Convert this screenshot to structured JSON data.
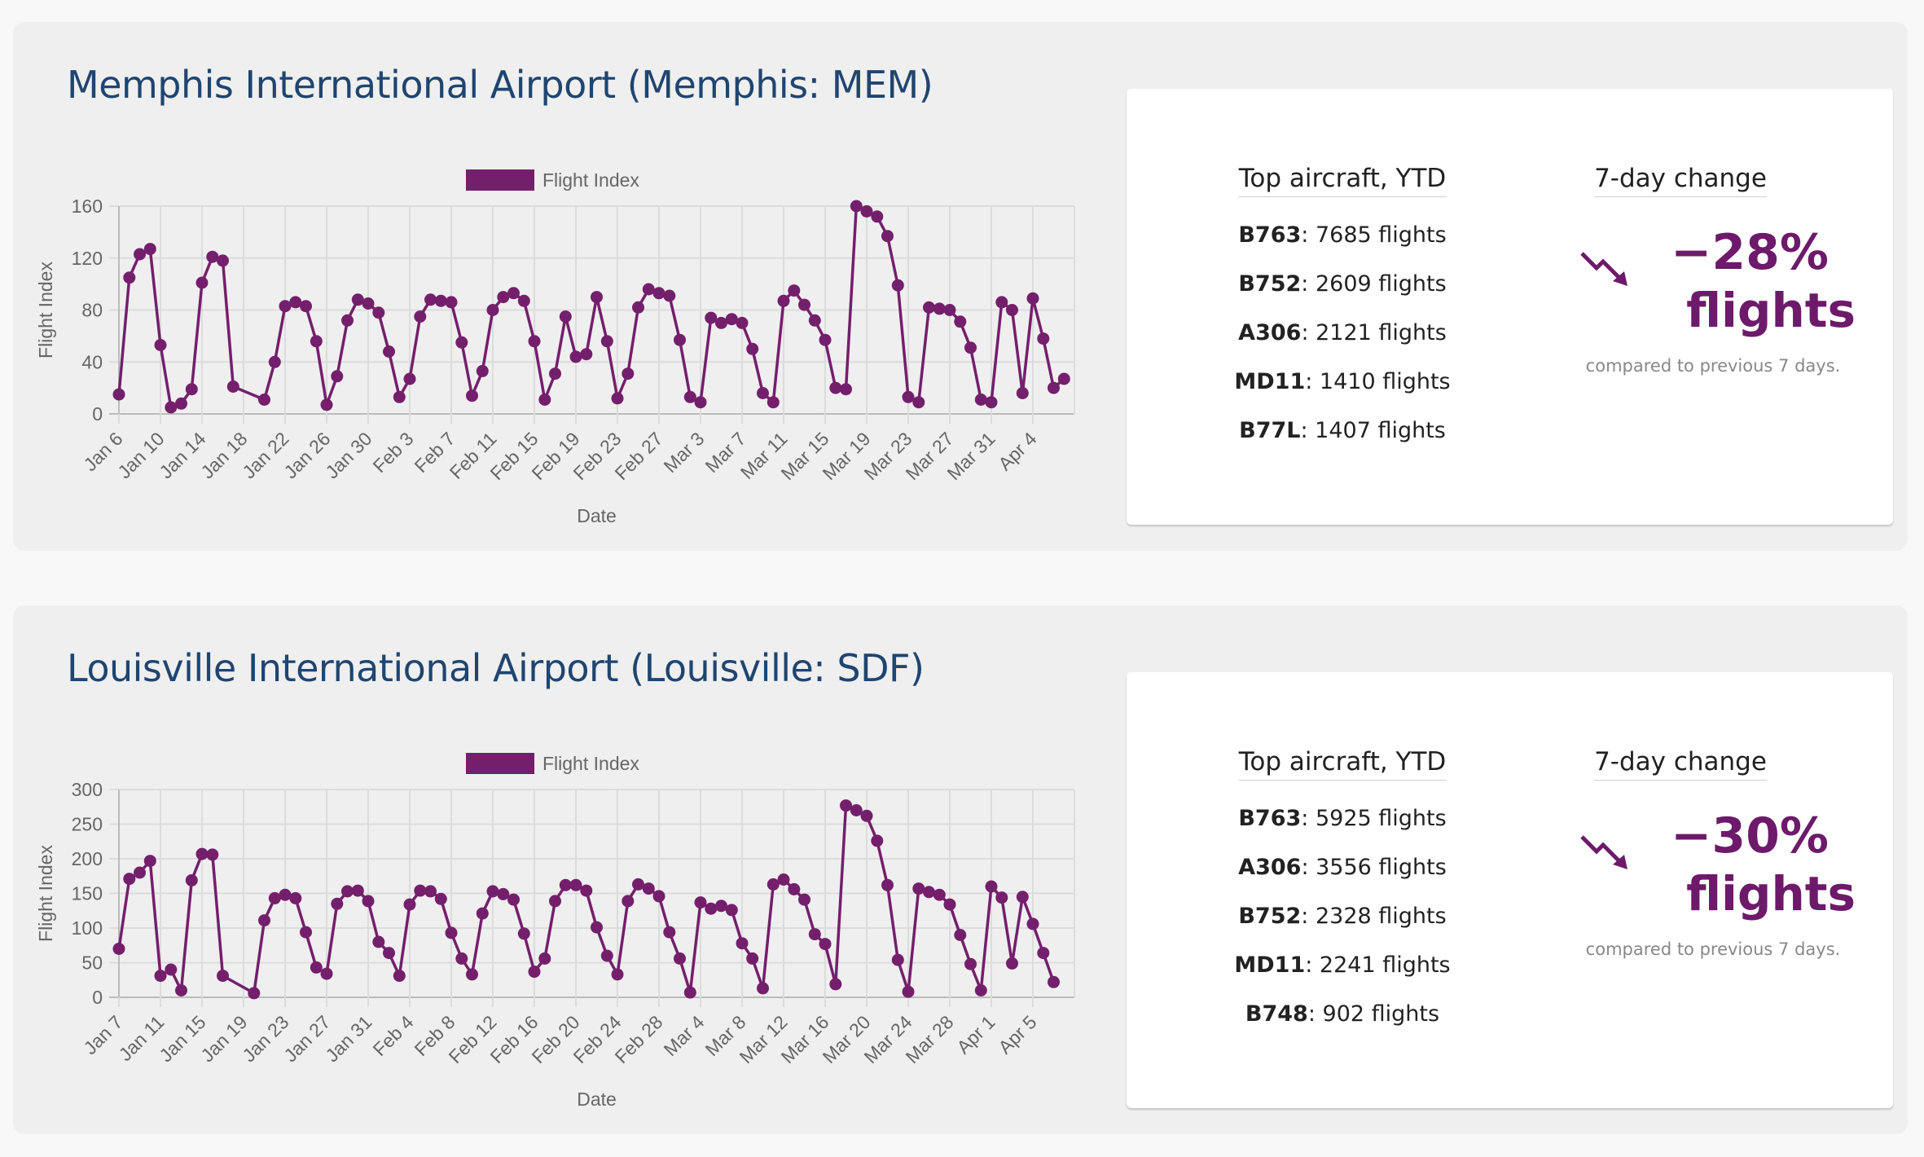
{
  "airports": [
    {
      "title": "Memphis International Airport (Memphis: MEM)",
      "chart_data": {
        "type": "line",
        "legend": "Flight Index",
        "xlabel": "Date",
        "ylabel": "Flight Index",
        "ylim": [
          0,
          160
        ],
        "yticks": [
          0,
          40,
          80,
          120,
          160
        ],
        "tick_labels": [
          "Jan 6",
          "Jan 10",
          "Jan 14",
          "Jan 18",
          "Jan 22",
          "Jan 26",
          "Jan 30",
          "Feb 3",
          "Feb 7",
          "Feb 11",
          "Feb 15",
          "Feb 19",
          "Feb 23",
          "Feb 27",
          "Mar 3",
          "Mar 7",
          "Mar 11",
          "Mar 15",
          "Mar 19",
          "Mar 23",
          "Mar 27",
          "Mar 31",
          "Apr 4"
        ],
        "x_start": 0,
        "x_end": 92,
        "day_offset": 0,
        "tick_every": 4,
        "points": [
          [
            0,
            15
          ],
          [
            1,
            105
          ],
          [
            2,
            123
          ],
          [
            3,
            127
          ],
          [
            4,
            53
          ],
          [
            5,
            5
          ],
          [
            6,
            8
          ],
          [
            7,
            19
          ],
          [
            8,
            101
          ],
          [
            9,
            121
          ],
          [
            10,
            118
          ],
          [
            11,
            21
          ],
          [
            14,
            11
          ],
          [
            15,
            40
          ],
          [
            16,
            83
          ],
          [
            17,
            86
          ],
          [
            18,
            83
          ],
          [
            19,
            56
          ],
          [
            20,
            7
          ],
          [
            21,
            29
          ],
          [
            22,
            72
          ],
          [
            23,
            88
          ],
          [
            24,
            85
          ],
          [
            25,
            78
          ],
          [
            26,
            48
          ],
          [
            27,
            13
          ],
          [
            28,
            27
          ],
          [
            29,
            75
          ],
          [
            30,
            88
          ],
          [
            31,
            87
          ],
          [
            32,
            86
          ],
          [
            33,
            55
          ],
          [
            34,
            14
          ],
          [
            35,
            33
          ],
          [
            36,
            80
          ],
          [
            37,
            90
          ],
          [
            38,
            93
          ],
          [
            39,
            87
          ],
          [
            40,
            56
          ],
          [
            41,
            11
          ],
          [
            42,
            31
          ],
          [
            43,
            75
          ],
          [
            44,
            44
          ],
          [
            45,
            46
          ],
          [
            46,
            90
          ],
          [
            47,
            56
          ],
          [
            48,
            12
          ],
          [
            49,
            31
          ],
          [
            50,
            82
          ],
          [
            51,
            96
          ],
          [
            52,
            93
          ],
          [
            53,
            91
          ],
          [
            54,
            57
          ],
          [
            55,
            13
          ],
          [
            56,
            9
          ],
          [
            57,
            74
          ],
          [
            58,
            70
          ],
          [
            59,
            73
          ],
          [
            60,
            70
          ],
          [
            61,
            50
          ],
          [
            62,
            16
          ],
          [
            63,
            9
          ],
          [
            64,
            87
          ],
          [
            65,
            95
          ],
          [
            66,
            84
          ],
          [
            67,
            72
          ],
          [
            68,
            57
          ],
          [
            69,
            20
          ],
          [
            70,
            19
          ],
          [
            71,
            160
          ],
          [
            72,
            156
          ],
          [
            73,
            152
          ],
          [
            74,
            137
          ],
          [
            75,
            99
          ],
          [
            76,
            13
          ],
          [
            77,
            9
          ],
          [
            78,
            82
          ],
          [
            79,
            81
          ],
          [
            80,
            80
          ],
          [
            81,
            71
          ],
          [
            82,
            51
          ],
          [
            83,
            11
          ],
          [
            84,
            9
          ],
          [
            85,
            86
          ],
          [
            86,
            80
          ],
          [
            87,
            16
          ],
          [
            88,
            89
          ],
          [
            89,
            58
          ],
          [
            90,
            20
          ],
          [
            91,
            27
          ]
        ]
      },
      "stats": {
        "aircraft_header": "Top aircraft, YTD",
        "aircraft": [
          {
            "code": "B763",
            "text": ": 7685 flights"
          },
          {
            "code": "B752",
            "text": ": 2609 flights"
          },
          {
            "code": "A306",
            "text": ": 2121 flights"
          },
          {
            "code": "MD11",
            "text": ": 1410 flights"
          },
          {
            "code": "B77L",
            "text": ": 1407 flights"
          }
        ],
        "change_header": "7-day change",
        "change_value": "−28%",
        "change_unit": "flights",
        "change_caption": "compared to previous 7 days.",
        "trend_icon": "trending-down-icon"
      }
    },
    {
      "title": "Louisville International Airport (Louisville: SDF)",
      "chart_data": {
        "type": "line",
        "legend": "Flight Index",
        "xlabel": "Date",
        "ylabel": "Flight Index",
        "ylim": [
          0,
          300
        ],
        "yticks": [
          0,
          50,
          100,
          150,
          200,
          250,
          300
        ],
        "tick_labels": [
          "Jan 7",
          "Jan 11",
          "Jan 15",
          "Jan 19",
          "Jan 23",
          "Jan 27",
          "Jan 31",
          "Feb 4",
          "Feb 8",
          "Feb 12",
          "Feb 16",
          "Feb 20",
          "Feb 24",
          "Feb 28",
          "Mar 4",
          "Mar 8",
          "Mar 12",
          "Mar 16",
          "Mar 20",
          "Mar 24",
          "Mar 28",
          "Apr 1",
          "Apr 5"
        ],
        "x_start": 0,
        "x_end": 92,
        "day_offset": 0,
        "tick_every": 4,
        "points": [
          [
            0,
            70
          ],
          [
            1,
            171
          ],
          [
            2,
            180
          ],
          [
            3,
            197
          ],
          [
            4,
            31
          ],
          [
            5,
            40
          ],
          [
            6,
            10
          ],
          [
            7,
            169
          ],
          [
            8,
            207
          ],
          [
            9,
            206
          ],
          [
            10,
            31
          ],
          [
            13,
            6
          ],
          [
            14,
            111
          ],
          [
            15,
            143
          ],
          [
            16,
            148
          ],
          [
            17,
            143
          ],
          [
            18,
            94
          ],
          [
            19,
            43
          ],
          [
            20,
            34
          ],
          [
            21,
            135
          ],
          [
            22,
            153
          ],
          [
            23,
            154
          ],
          [
            24,
            139
          ],
          [
            25,
            80
          ],
          [
            26,
            64
          ],
          [
            27,
            31
          ],
          [
            28,
            134
          ],
          [
            29,
            154
          ],
          [
            30,
            153
          ],
          [
            31,
            142
          ],
          [
            32,
            93
          ],
          [
            33,
            56
          ],
          [
            34,
            33
          ],
          [
            35,
            121
          ],
          [
            36,
            153
          ],
          [
            37,
            149
          ],
          [
            38,
            141
          ],
          [
            39,
            92
          ],
          [
            40,
            37
          ],
          [
            41,
            56
          ],
          [
            42,
            139
          ],
          [
            43,
            162
          ],
          [
            44,
            162
          ],
          [
            45,
            154
          ],
          [
            46,
            101
          ],
          [
            47,
            60
          ],
          [
            48,
            33
          ],
          [
            49,
            139
          ],
          [
            50,
            163
          ],
          [
            51,
            157
          ],
          [
            52,
            146
          ],
          [
            53,
            94
          ],
          [
            54,
            56
          ],
          [
            55,
            7
          ],
          [
            56,
            137
          ],
          [
            57,
            128
          ],
          [
            58,
            132
          ],
          [
            59,
            126
          ],
          [
            60,
            78
          ],
          [
            61,
            56
          ],
          [
            62,
            13
          ],
          [
            63,
            163
          ],
          [
            64,
            170
          ],
          [
            65,
            156
          ],
          [
            66,
            141
          ],
          [
            67,
            91
          ],
          [
            68,
            77
          ],
          [
            69,
            19
          ],
          [
            70,
            277
          ],
          [
            71,
            270
          ],
          [
            72,
            262
          ],
          [
            73,
            226
          ],
          [
            74,
            162
          ],
          [
            75,
            54
          ],
          [
            76,
            8
          ],
          [
            77,
            157
          ],
          [
            78,
            152
          ],
          [
            79,
            148
          ],
          [
            80,
            134
          ],
          [
            81,
            90
          ],
          [
            82,
            48
          ],
          [
            83,
            10
          ],
          [
            84,
            160
          ],
          [
            85,
            144
          ],
          [
            86,
            49
          ],
          [
            87,
            145
          ],
          [
            88,
            106
          ],
          [
            89,
            64
          ],
          [
            90,
            22
          ]
        ]
      },
      "stats": {
        "aircraft_header": "Top aircraft, YTD",
        "aircraft": [
          {
            "code": "B763",
            "text": ": 5925 flights"
          },
          {
            "code": "A306",
            "text": ": 3556 flights"
          },
          {
            "code": "B752",
            "text": ": 2328 flights"
          },
          {
            "code": "MD11",
            "text": ": 2241 flights"
          },
          {
            "code": "B748",
            "text": ": 902 flights"
          }
        ],
        "change_header": "7-day change",
        "change_value": "−30%",
        "change_unit": "flights",
        "change_caption": "compared to previous 7 days.",
        "trend_icon": "trending-down-icon"
      }
    }
  ],
  "colors": {
    "series": "#741f6c",
    "title": "#1f4570",
    "grid": "#dcdcdc",
    "accent": "#6d1a6b"
  }
}
